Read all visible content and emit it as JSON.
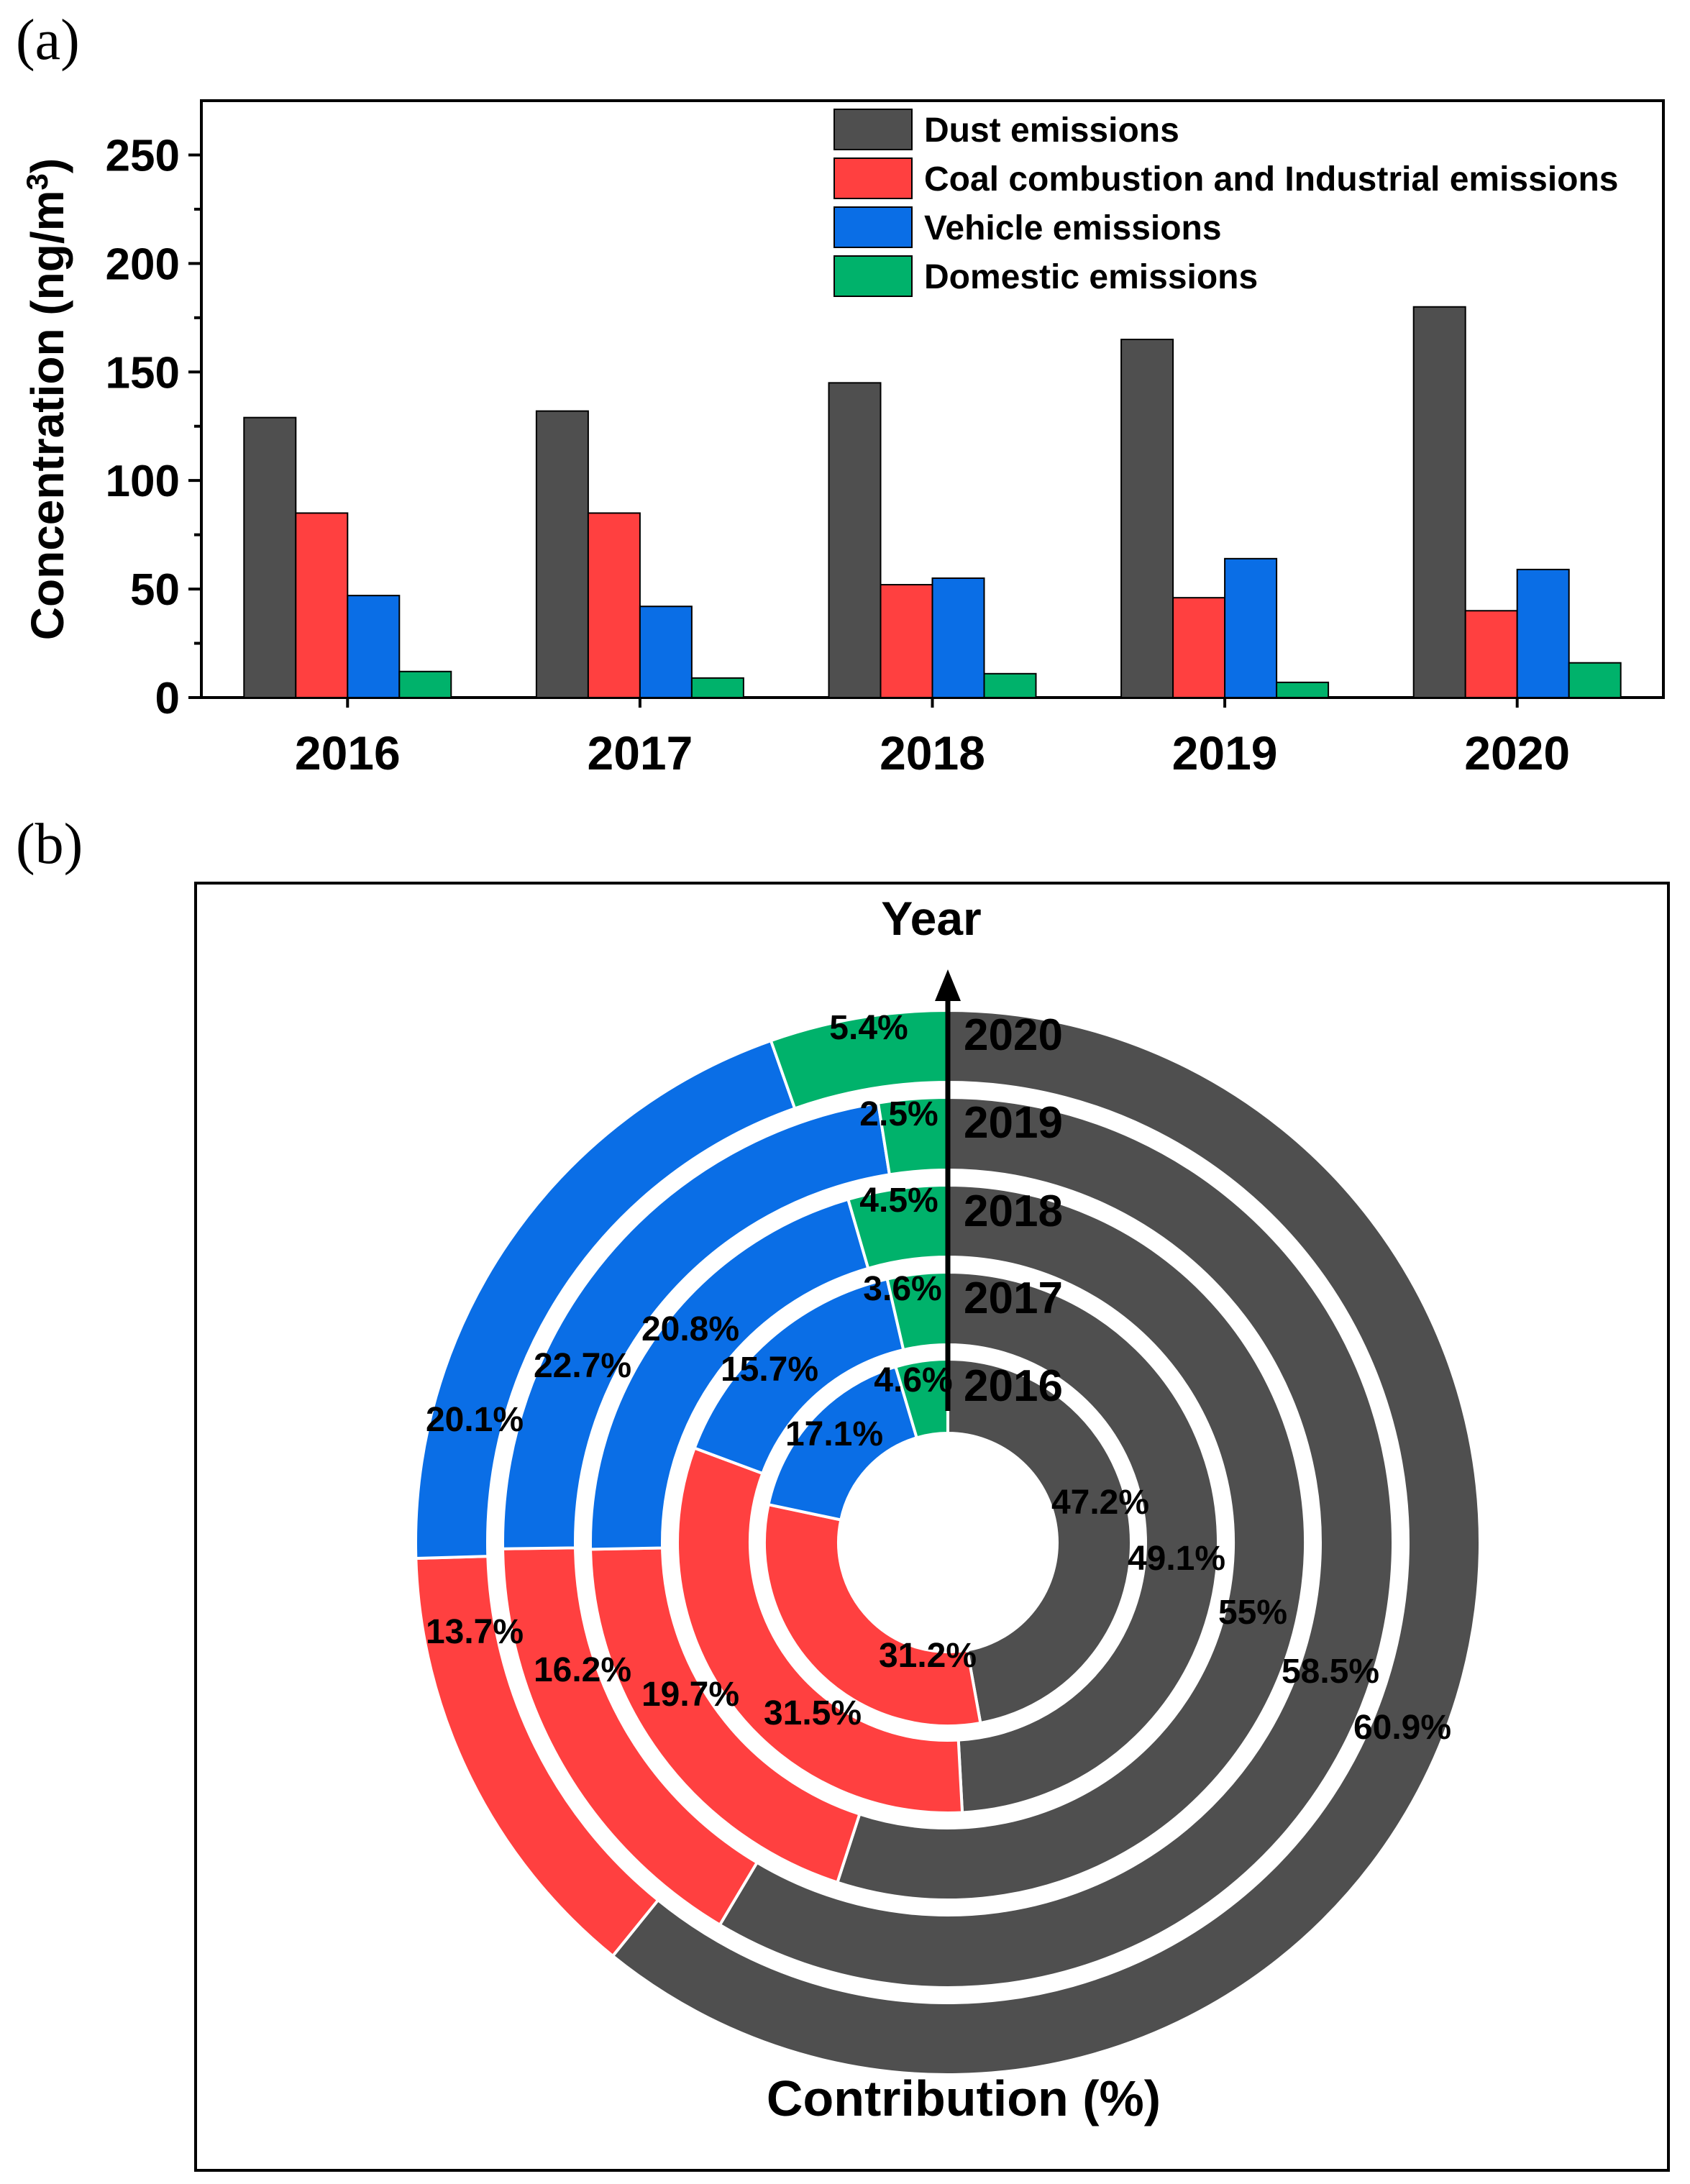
{
  "colors": {
    "dust": "#4f4f4f",
    "coal": "#ff4040",
    "vehicle": "#0a6ee6",
    "domestic": "#00b26b",
    "axis": "#000000",
    "separator": "#ffffff"
  },
  "chart_data": [
    {
      "panel": "(a)",
      "type": "bar",
      "title": "",
      "xlabel": "",
      "ylabel": "Concentration (ng/m",
      "ylabel_sup": "3",
      "ylabel_end": ")",
      "ylim": [
        0,
        275
      ],
      "yticks": [
        "0",
        "50",
        "100",
        "150",
        "200",
        "250"
      ],
      "grid": false,
      "legend_position": "top-right",
      "categories": [
        "2016",
        "2017",
        "2018",
        "2019",
        "2020"
      ],
      "series": [
        {
          "name": "Dust emissions",
          "color_key": "dust",
          "values": [
            129,
            132,
            145,
            165,
            180
          ]
        },
        {
          "name": "Coal combustion and Industrial emissions",
          "color_key": "coal",
          "values": [
            85,
            85,
            52,
            46,
            40
          ]
        },
        {
          "name": "Vehicle emissions",
          "color_key": "vehicle",
          "values": [
            47,
            42,
            55,
            64,
            59
          ]
        },
        {
          "name": "Domestic emissions",
          "color_key": "domestic",
          "values": [
            12,
            9,
            11,
            7,
            16
          ]
        }
      ]
    },
    {
      "panel": "(b)",
      "type": "pie",
      "subtype": "nested-donut",
      "top_label": "Year",
      "bottom_label": "Contribution (%)",
      "rings": [
        {
          "year": "2016",
          "values": [
            47.2,
            31.2,
            17.1,
            4.6
          ],
          "labels": [
            "47.2%",
            "31.2%",
            "17.1%",
            "4.6%"
          ]
        },
        {
          "year": "2017",
          "values": [
            49.1,
            31.5,
            15.7,
            3.6
          ],
          "labels": [
            "49.1%",
            "31.5%",
            "15.7%",
            "3.6%"
          ]
        },
        {
          "year": "2018",
          "values": [
            55,
            19.7,
            20.8,
            4.5
          ],
          "labels": [
            "55%",
            "19.7%",
            "20.8%",
            "4.5%"
          ]
        },
        {
          "year": "2019",
          "values": [
            58.5,
            16.2,
            22.7,
            2.5
          ],
          "labels": [
            "58.5%",
            "16.2%",
            "22.7%",
            "2.5%"
          ]
        },
        {
          "year": "2020",
          "values": [
            60.9,
            13.7,
            20.1,
            5.4
          ],
          "labels": [
            "60.9%",
            "13.7%",
            "20.1%",
            "5.4%"
          ]
        }
      ],
      "slice_order": [
        "Dust emissions",
        "Coal combustion and Industrial emissions",
        "Vehicle emissions",
        "Domestic emissions"
      ]
    }
  ]
}
